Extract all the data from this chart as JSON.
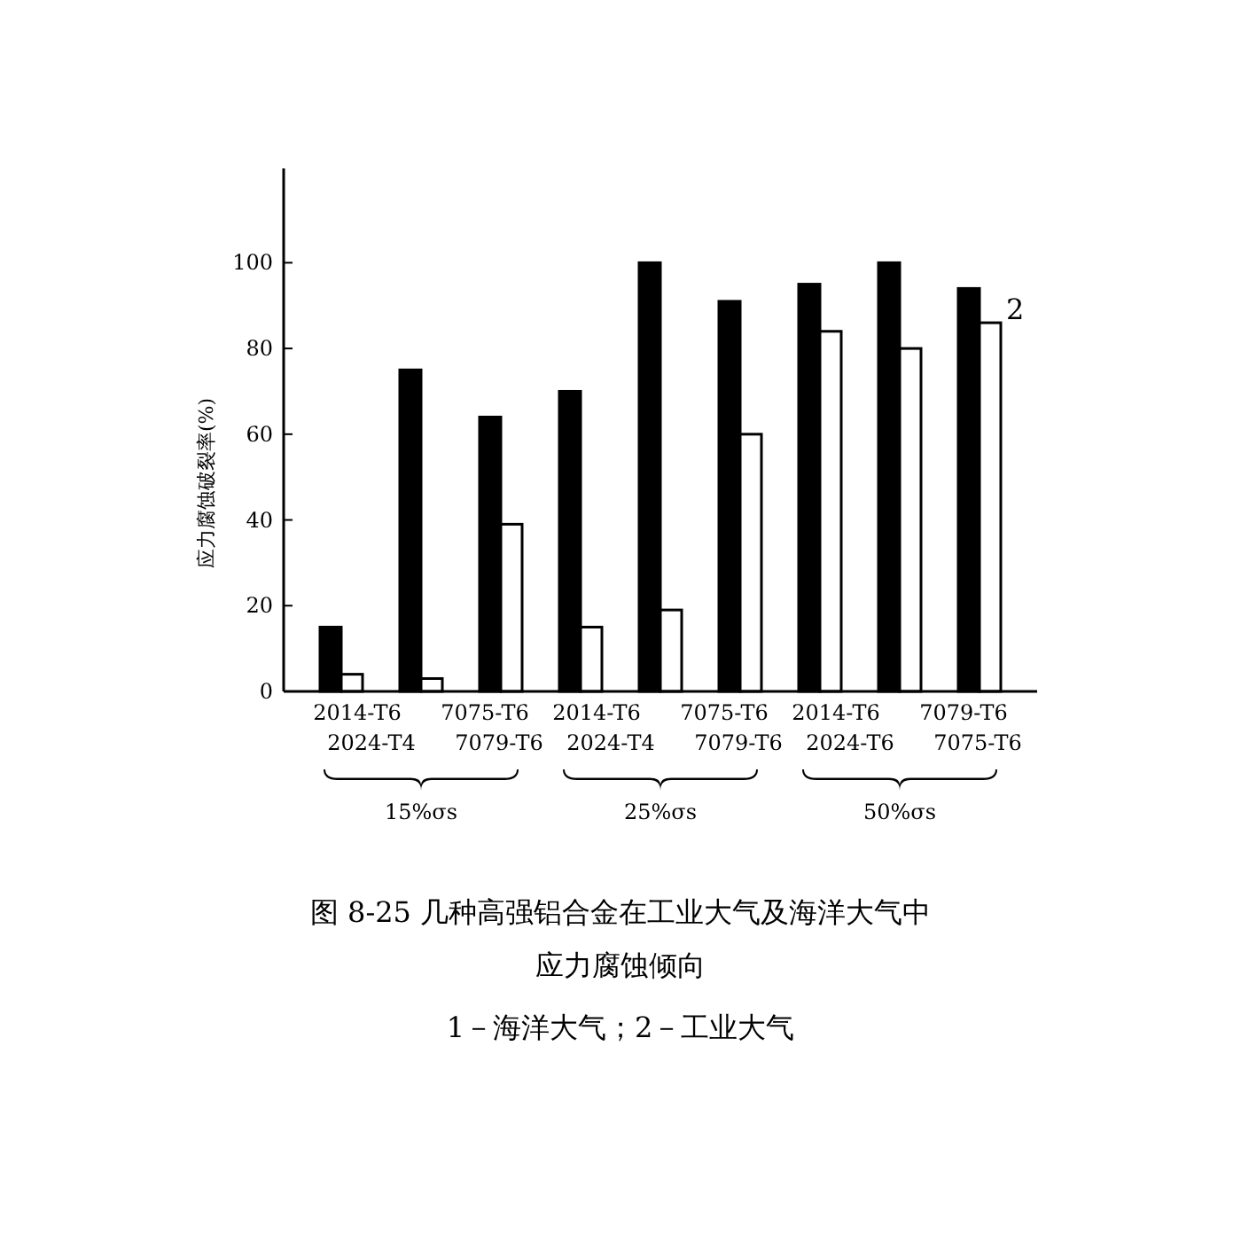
{
  "chart_data": {
    "type": "bar",
    "title": "图 8-25  几种高强铝合金在工业大气及海洋大气中应力腐蚀倾向",
    "subtitle": "1－海洋大气；2－工业大气",
    "ylabel": "应力腐蚀破裂率(%)",
    "categories": [
      null,
      null,
      null,
      null,
      null,
      null,
      null,
      null,
      null
    ],
    "series": [
      {
        "color": "#000000",
        "values": [
          15,
          75,
          64,
          70,
          100,
          91,
          95,
          100,
          94
        ]
      },
      {
        "name": "2",
        "color": "#ffffff",
        "values": [
          4,
          3,
          39,
          15,
          19,
          60,
          84,
          80,
          86
        ]
      }
    ],
    "ylim": [
      0,
      122
    ],
    "yticks": [
      0,
      20,
      40,
      60,
      80,
      100
    ],
    "annotations": [
      "2014-T6",
      "7075-T6",
      "2024-T4",
      "7079-T6",
      "2014-T6",
      "7075-T6",
      "2024-T4",
      "7079-T6",
      "2014-T6",
      "7079-T6",
      "2024-T6",
      "7075-T6",
      "15%σs",
      "25%σs",
      "50%σs"
    ]
  }
}
